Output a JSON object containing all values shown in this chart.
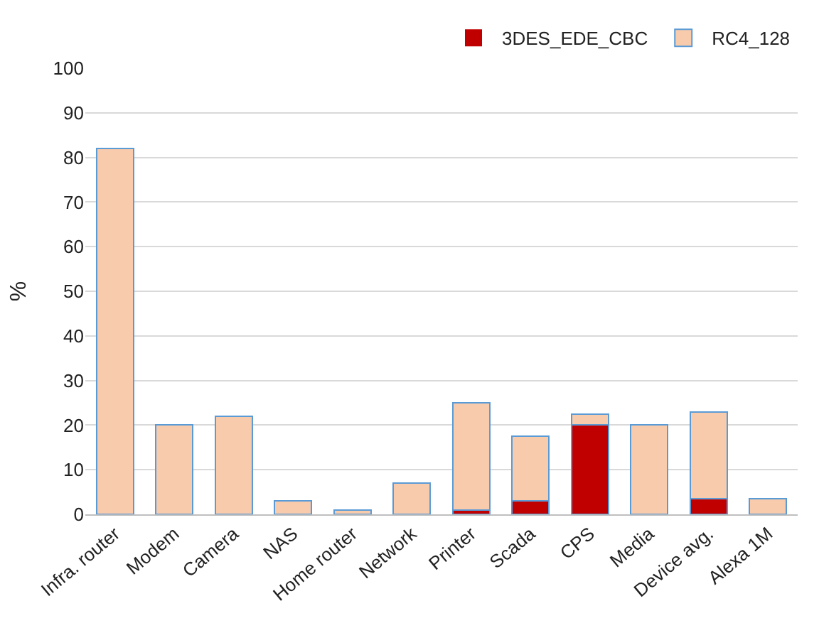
{
  "chart_data": {
    "type": "bar",
    "stacked": true,
    "ylabel": "%",
    "categories": [
      "Infra. router",
      "Modem",
      "Camera",
      "NAS",
      "Home router",
      "Network",
      "Printer",
      "Scada",
      "CPS",
      "Media",
      "Device avg.",
      "Alexa 1M"
    ],
    "series": [
      {
        "name": "3DES_EDE_CBC",
        "color": "#c00000",
        "values": [
          0,
          0,
          0,
          0,
          0,
          0,
          1,
          3,
          20,
          0,
          3.5,
          0
        ]
      },
      {
        "name": "RC4_128",
        "color": "#f8cbad",
        "values": [
          82,
          20,
          22,
          3,
          1,
          7,
          24,
          14.5,
          2.5,
          20,
          19.5,
          3.5
        ]
      }
    ],
    "ylim": [
      0,
      100
    ],
    "yticks": [
      0,
      10,
      20,
      30,
      40,
      50,
      60,
      70,
      80,
      90,
      100
    ],
    "grid": "y",
    "legend": "top right"
  }
}
